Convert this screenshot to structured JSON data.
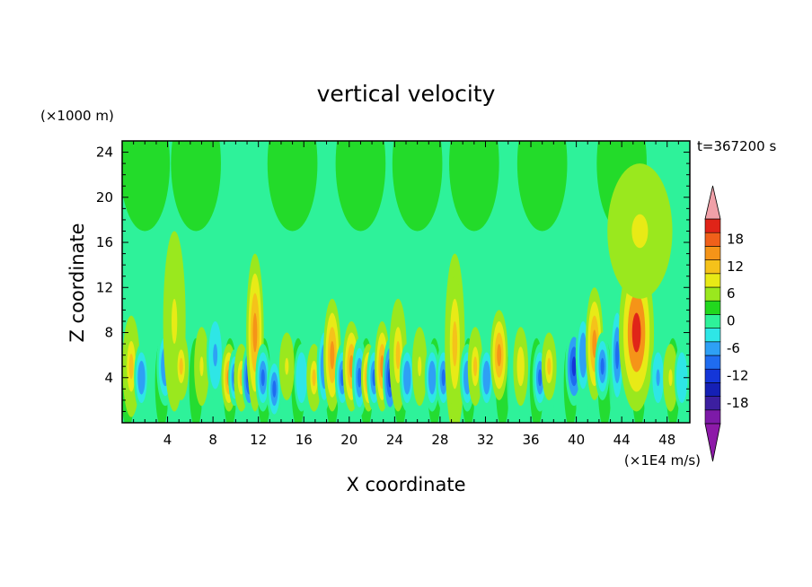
{
  "chart_data": {
    "type": "heatmap",
    "title": "vertical velocity",
    "xlabel": "X coordinate",
    "ylabel": "Z coordinate",
    "x_unit": "(×1E4 m/s)",
    "y_unit": "(×1000 m)",
    "time_label": "t=367200 s",
    "xlim": [
      0,
      50
    ],
    "ylim": [
      0,
      25
    ],
    "x_ticks": [
      4,
      8,
      12,
      16,
      20,
      24,
      28,
      32,
      36,
      40,
      44,
      48
    ],
    "y_ticks": [
      4,
      8,
      12,
      16,
      20,
      24
    ],
    "colorbar": {
      "levels": [
        -21,
        -18,
        -15,
        -12,
        -9,
        -6,
        -3,
        0,
        3,
        6,
        9,
        12,
        15,
        18,
        21
      ],
      "tick_labels": [
        18,
        12,
        6,
        0,
        -6,
        -12,
        -18
      ],
      "colors": [
        "#7d1aa8",
        "#3c1fa0",
        "#1520b5",
        "#1436d8",
        "#1f6cf0",
        "#2ea0f5",
        "#2ee6e6",
        "#2ef29a",
        "#22d81e",
        "#9ae81e",
        "#e8ea16",
        "#f5c21a",
        "#f59418",
        "#f0601a",
        "#e02418",
        "#f0a0a8"
      ],
      "under_color": "#8d1aa8",
      "over_color": "#f0a0a8"
    },
    "features": [
      {
        "x": 0.8,
        "z": 5,
        "w": 0.35,
        "h": 4.5,
        "value": 10
      },
      {
        "x": 1.7,
        "z": 4,
        "w": 0.3,
        "h": 3,
        "value": -9
      },
      {
        "x": 3.8,
        "z": 5,
        "w": 0.35,
        "h": 3.5,
        "value": -8
      },
      {
        "x": 4.6,
        "z": 9,
        "w": 0.45,
        "h": 8,
        "value": 7
      },
      {
        "x": 5.2,
        "z": 5,
        "w": 0.3,
        "h": 3,
        "value": 9
      },
      {
        "x": 7.0,
        "z": 5,
        "w": 0.3,
        "h": 3.5,
        "value": 6
      },
      {
        "x": 8.2,
        "z": 6,
        "w": 0.35,
        "h": 4,
        "value": -7
      },
      {
        "x": 9.4,
        "z": 4,
        "w": 0.3,
        "h": 3,
        "value": 12
      },
      {
        "x": 9.9,
        "z": 4,
        "w": 0.25,
        "h": 2.5,
        "value": -12
      },
      {
        "x": 10.5,
        "z": 4,
        "w": 0.3,
        "h": 3,
        "value": 10
      },
      {
        "x": 11.2,
        "z": 4,
        "w": 0.3,
        "h": 3,
        "value": -13
      },
      {
        "x": 11.7,
        "z": 8,
        "w": 0.35,
        "h": 7,
        "value": 14
      },
      {
        "x": 12.4,
        "z": 4,
        "w": 0.3,
        "h": 3,
        "value": -12
      },
      {
        "x": 13.4,
        "z": 3,
        "w": 0.3,
        "h": 3,
        "value": -10
      },
      {
        "x": 14.5,
        "z": 5,
        "w": 0.3,
        "h": 3,
        "value": 6
      },
      {
        "x": 15.8,
        "z": 4,
        "w": 0.3,
        "h": 3,
        "value": -6
      },
      {
        "x": 16.9,
        "z": 4,
        "w": 0.3,
        "h": 3,
        "value": 10
      },
      {
        "x": 17.8,
        "z": 5,
        "w": 0.3,
        "h": 4,
        "value": -9
      },
      {
        "x": 18.5,
        "z": 6,
        "w": 0.35,
        "h": 5,
        "value": 14
      },
      {
        "x": 19.4,
        "z": 4,
        "w": 0.3,
        "h": 3,
        "value": -11
      },
      {
        "x": 20.2,
        "z": 5,
        "w": 0.35,
        "h": 4,
        "value": 13
      },
      {
        "x": 20.9,
        "z": 4,
        "w": 0.3,
        "h": 3.5,
        "value": -12
      },
      {
        "x": 21.7,
        "z": 4,
        "w": 0.3,
        "h": 3,
        "value": 12
      },
      {
        "x": 22.2,
        "z": 4,
        "w": 0.3,
        "h": 3,
        "value": -12
      },
      {
        "x": 22.9,
        "z": 5,
        "w": 0.3,
        "h": 4,
        "value": 12
      },
      {
        "x": 23.6,
        "z": 4,
        "w": 0.3,
        "h": 3.5,
        "value": -13
      },
      {
        "x": 24.3,
        "z": 6,
        "w": 0.35,
        "h": 5,
        "value": 10
      },
      {
        "x": 25.1,
        "z": 4,
        "w": 0.3,
        "h": 3,
        "value": -9
      },
      {
        "x": 26.2,
        "z": 5,
        "w": 0.3,
        "h": 3.5,
        "value": 6
      },
      {
        "x": 27.3,
        "z": 4,
        "w": 0.3,
        "h": 3,
        "value": -8
      },
      {
        "x": 28.3,
        "z": 4,
        "w": 0.3,
        "h": 3,
        "value": -10
      },
      {
        "x": 29.3,
        "z": 7,
        "w": 0.4,
        "h": 8,
        "value": 11
      },
      {
        "x": 30.4,
        "z": 4,
        "w": 0.3,
        "h": 3,
        "value": -9
      },
      {
        "x": 31.1,
        "z": 5,
        "w": 0.3,
        "h": 3.5,
        "value": 10
      },
      {
        "x": 32.1,
        "z": 4,
        "w": 0.3,
        "h": 3,
        "value": -9
      },
      {
        "x": 33.2,
        "z": 6,
        "w": 0.35,
        "h": 4,
        "value": 12
      },
      {
        "x": 35.1,
        "z": 5,
        "w": 0.3,
        "h": 3.5,
        "value": 8
      },
      {
        "x": 36.8,
        "z": 4,
        "w": 0.3,
        "h": 3,
        "value": -12
      },
      {
        "x": 37.6,
        "z": 5,
        "w": 0.3,
        "h": 3,
        "value": 9
      },
      {
        "x": 39.8,
        "z": 5,
        "w": 0.35,
        "h": 3.5,
        "value": -13
      },
      {
        "x": 40.6,
        "z": 6,
        "w": 0.3,
        "h": 4,
        "value": -9
      },
      {
        "x": 41.6,
        "z": 7,
        "w": 0.35,
        "h": 5,
        "value": 12
      },
      {
        "x": 42.3,
        "z": 5,
        "w": 0.3,
        "h": 3,
        "value": -10
      },
      {
        "x": 43.6,
        "z": 6,
        "w": 0.3,
        "h": 5,
        "value": -11
      },
      {
        "x": 45.3,
        "z": 8,
        "w": 0.7,
        "h": 7,
        "value": 18
      },
      {
        "x": 45.6,
        "z": 17,
        "w": 1.3,
        "h": 6,
        "value": 7
      },
      {
        "x": 47.2,
        "z": 4,
        "w": 0.3,
        "h": 3,
        "value": -7
      },
      {
        "x": 48.3,
        "z": 4,
        "w": 0.3,
        "h": 3,
        "value": 6
      },
      {
        "x": 49.3,
        "z": 4,
        "w": 0.3,
        "h": 3,
        "value": -6
      }
    ]
  }
}
